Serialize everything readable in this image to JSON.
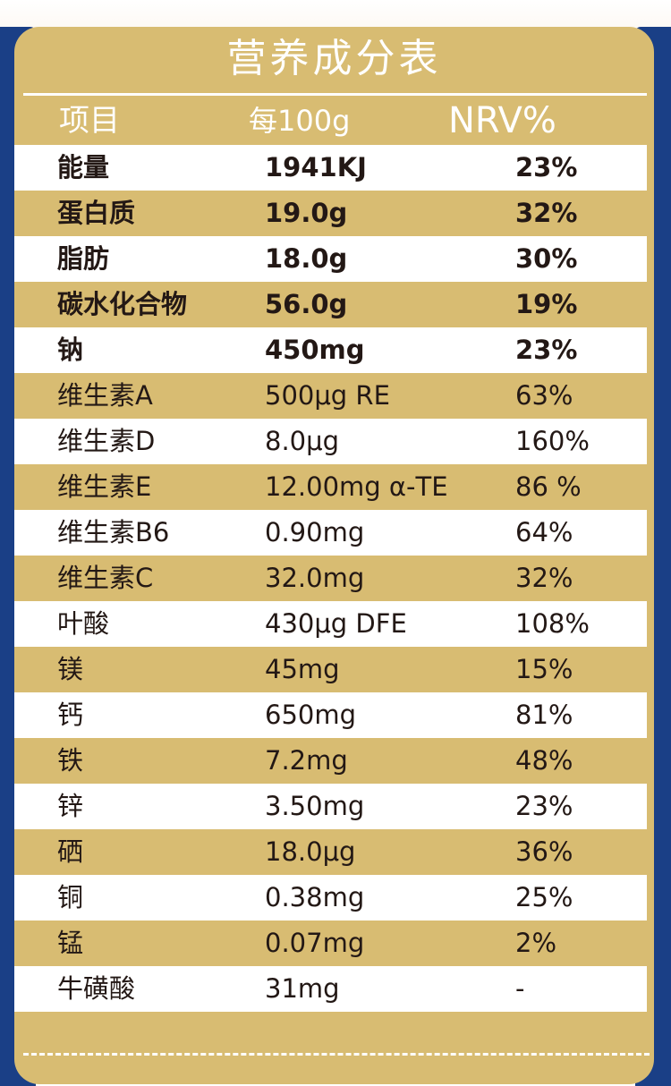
{
  "title": "营养成分表",
  "header": {
    "item": "项目",
    "per": "每100g",
    "nrv": "NRV%"
  },
  "rows": [
    {
      "name": "能量",
      "per": "1941KJ",
      "nrv": "23%"
    },
    {
      "name": "蛋白质",
      "per": "19.0g",
      "nrv": "32%"
    },
    {
      "name": "脂肪",
      "per": "18.0g",
      "nrv": "30%"
    },
    {
      "name": "碳水化合物",
      "per": "56.0g",
      "nrv": "19%"
    },
    {
      "name": "钠",
      "per": "450mg",
      "nrv": "23%"
    },
    {
      "name": "维生素A",
      "per": "500μg RE",
      "nrv": "63%"
    },
    {
      "name": "维生素D",
      "per": "8.0μg",
      "nrv": "160%"
    },
    {
      "name": "维生素E",
      "per": "12.00mg α-TE",
      "nrv": "86 %"
    },
    {
      "name": "维生素B6",
      "per": "0.90mg",
      "nrv": "64%"
    },
    {
      "name": "维生素C",
      "per": "32.0mg",
      "nrv": "32%"
    },
    {
      "name": "叶酸",
      "per": "430μg DFE",
      "nrv": "108%"
    },
    {
      "name": "镁",
      "per": "45mg",
      "nrv": "15%"
    },
    {
      "name": "钙",
      "per": "650mg",
      "nrv": "81%"
    },
    {
      "name": "铁",
      "per": "7.2mg",
      "nrv": "48%"
    },
    {
      "name": "锌",
      "per": "3.50mg",
      "nrv": "23%"
    },
    {
      "name": "硒",
      "per": "18.0μg",
      "nrv": "36%"
    },
    {
      "name": "铜",
      "per": "0.38mg",
      "nrv": "25%"
    },
    {
      "name": "锰",
      "per": "0.07mg",
      "nrv": "2%"
    },
    {
      "name": "牛磺酸",
      "per": "31mg",
      "nrv": "-"
    }
  ],
  "colors": {
    "panel": "#d8bc72",
    "row_light": "#ffffff",
    "border_blue": "#1a3f86",
    "text": "#231815"
  }
}
